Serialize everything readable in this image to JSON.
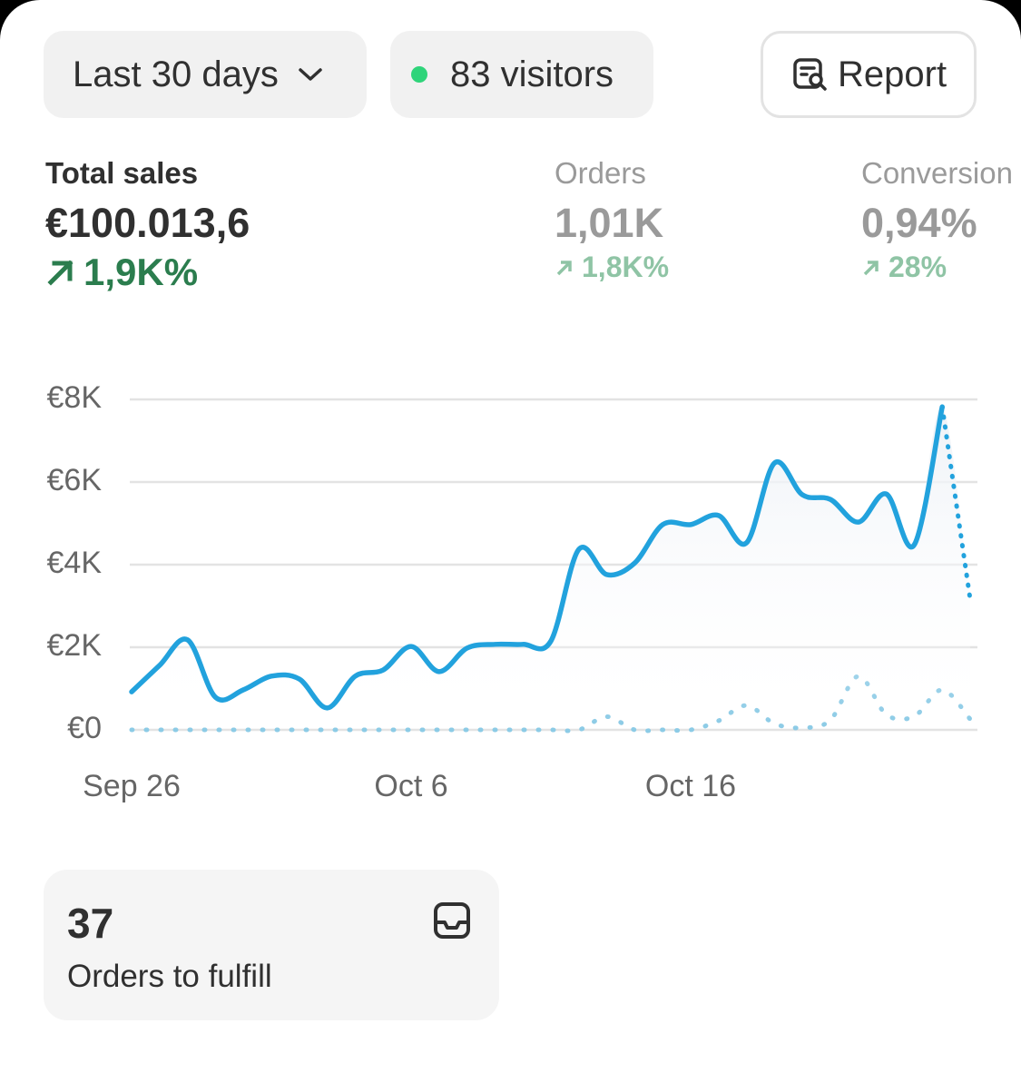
{
  "filters": {
    "range": "Last 30 days",
    "visitors": "83 visitors",
    "report": "Report"
  },
  "metrics": [
    {
      "label": "Total sales",
      "value": "€100.013,6",
      "change": "1,9K%"
    },
    {
      "label": "Orders",
      "value": "1,01K",
      "change": "1,8K%"
    },
    {
      "label": "Conversion",
      "value": "0,94%",
      "change": "28%"
    }
  ],
  "chart_data": {
    "type": "line",
    "categories": [
      "Sep 26",
      null,
      null,
      null,
      null,
      null,
      null,
      null,
      null,
      null,
      "Oct 6",
      null,
      null,
      null,
      null,
      null,
      null,
      null,
      null,
      null,
      "Oct 16",
      null,
      null,
      null,
      null,
      null,
      null,
      null,
      null,
      null,
      null
    ],
    "series": [
      {
        "color": "#22a2dd",
        "values": [
          920,
          1560,
          2180,
          790,
          970,
          1300,
          1230,
          530,
          1300,
          1450,
          2020,
          1410,
          1980,
          2070,
          2070,
          2150,
          4370,
          3760,
          4040,
          4970,
          4970,
          5190,
          4530,
          6460,
          5690,
          5580,
          5030,
          5710,
          4480,
          7820,
          3160
        ]
      },
      {
        "color": "#8ccbe6",
        "values": [
          0,
          0,
          0,
          0,
          0,
          0,
          0,
          0,
          0,
          0,
          0,
          0,
          0,
          0,
          0,
          0,
          0,
          320,
          0,
          0,
          0,
          220,
          590,
          150,
          50,
          240,
          1300,
          370,
          330,
          970,
          260
        ]
      }
    ],
    "ylim": [
      0,
      8000
    ],
    "yticks": [
      {
        "value": 0,
        "label": "€0"
      },
      {
        "value": 2000,
        "label": "€2K"
      },
      {
        "value": 4000,
        "label": "€4K"
      },
      {
        "value": 6000,
        "label": "€6K"
      },
      {
        "value": 8000,
        "label": "€8K"
      }
    ],
    "grid": true
  },
  "card": {
    "count": "37",
    "label": "Orders to fulfill"
  }
}
